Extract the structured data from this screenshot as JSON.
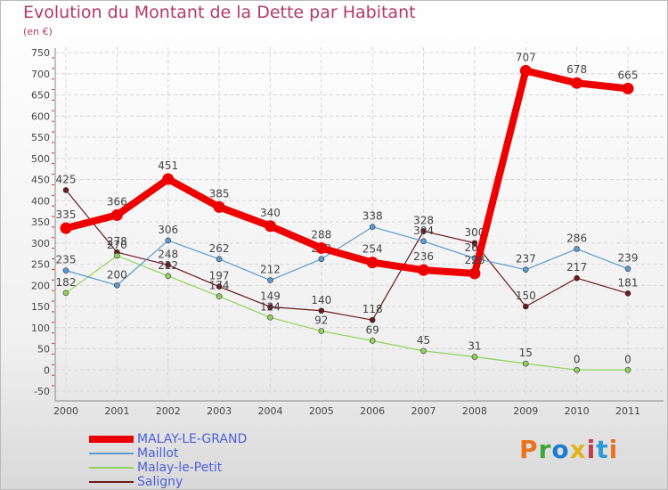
{
  "title": "Evolution du Montant de la Dette par Habitant",
  "subtitle": "(en €)",
  "chart_data": {
    "type": "line",
    "title": "Evolution du Montant de la Dette par Habitant",
    "subtitle": "(en €)",
    "xlabel": "",
    "ylabel": "",
    "categories": [
      "2000",
      "2001",
      "2002",
      "2003",
      "2004",
      "2005",
      "2006",
      "2007",
      "2008",
      "2009",
      "2010",
      "2011"
    ],
    "ylim": [
      -50,
      750
    ],
    "yticks": [
      -50,
      0,
      50,
      100,
      150,
      200,
      250,
      300,
      350,
      400,
      450,
      500,
      550,
      600,
      650,
      700,
      750
    ],
    "grid": true,
    "legend_position": "bottom-left",
    "series": [
      {
        "name": "Saligny",
        "color": "#6b1a1f",
        "width": 1.2,
        "values": [
          425,
          278,
          248,
          197,
          149,
          140,
          118,
          328,
          300,
          150,
          217,
          181
        ]
      },
      {
        "name": "Malay-le-Petit",
        "color": "#8fd35a",
        "width": 1.2,
        "values": [
          182,
          270,
          222,
          174,
          124,
          92,
          69,
          45,
          31,
          15,
          0,
          0
        ]
      },
      {
        "name": "Maillot",
        "color": "#5a9bd0",
        "width": 1.2,
        "values": [
          235,
          200,
          306,
          262,
          212,
          262,
          338,
          304,
          264,
          237,
          286,
          239
        ]
      },
      {
        "name": "MALAY-LE-GRAND",
        "color": "#ee0000",
        "width": 8,
        "values": [
          335,
          366,
          451,
          385,
          340,
          288,
          254,
          236,
          228,
          707,
          678,
          665
        ]
      }
    ]
  },
  "legend": [
    {
      "label": "MALAY-LE-GRAND",
      "color": "#ee0000"
    },
    {
      "label": "Maillot",
      "color": "#5a9bd0"
    },
    {
      "label": "Malay-le-Petit",
      "color": "#8fd35a"
    },
    {
      "label": "Saligny",
      "color": "#6b1a1f"
    }
  ],
  "logo": {
    "p": "P",
    "r": "r",
    "o": "o",
    "x": "x",
    "i": "i",
    "t": "t",
    "i2": "i"
  }
}
